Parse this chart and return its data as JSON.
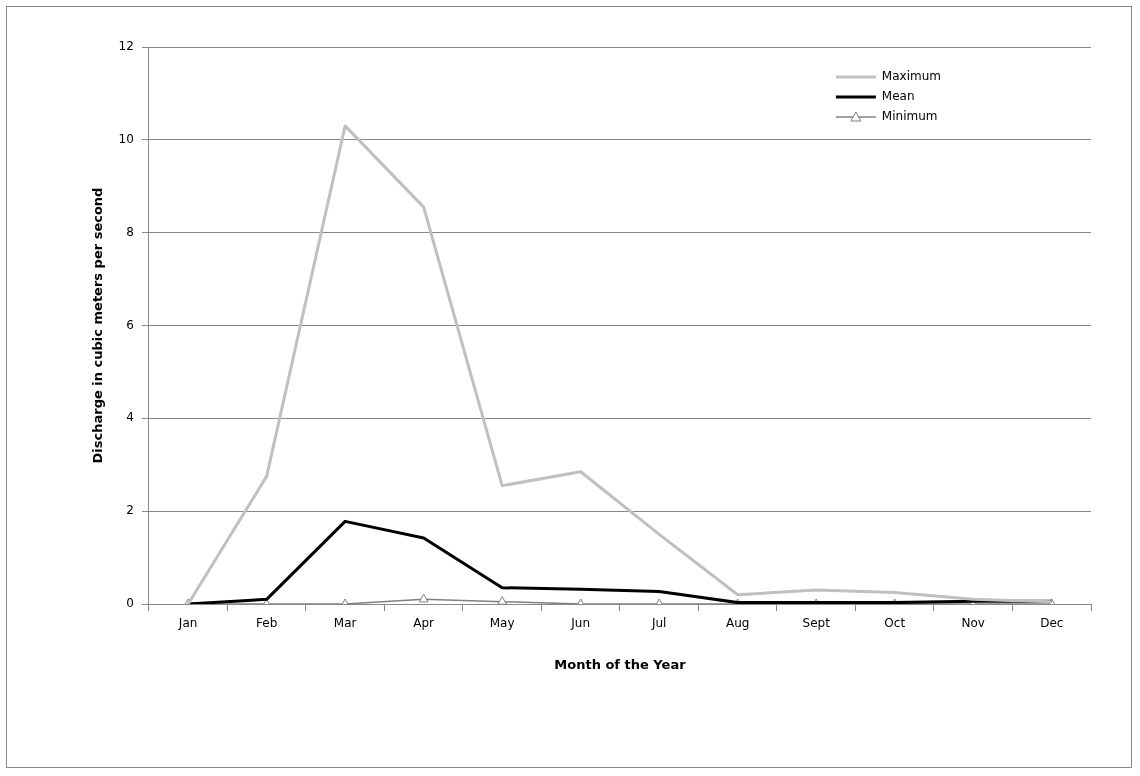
{
  "chart_data": {
    "type": "line",
    "xlabel": "Month of the Year",
    "ylabel": "Discharge in cubic meters per second",
    "categories": [
      "Jan",
      "Feb",
      "Mar",
      "Apr",
      "May",
      "Jun",
      "Jul",
      "Aug",
      "Sept",
      "Oct",
      "Nov",
      "Dec"
    ],
    "series": [
      {
        "name": "Maximum",
        "color": "#c0c0c0",
        "marker": "none",
        "values": [
          0,
          2.75,
          10.3,
          8.55,
          2.55,
          2.85,
          1.5,
          0.2,
          0.3,
          0.25,
          0.1,
          0.05
        ]
      },
      {
        "name": "Mean",
        "color": "#000000",
        "marker": "none",
        "values": [
          0,
          0.1,
          1.78,
          1.42,
          0.35,
          0.32,
          0.27,
          0.03,
          0.03,
          0.03,
          0.06,
          0.06
        ]
      },
      {
        "name": "Minimum",
        "color": "#808080",
        "marker": "triangle",
        "values": [
          0,
          0,
          0,
          0.1,
          0.05,
          0,
          0,
          0,
          0,
          0,
          0,
          0
        ]
      }
    ],
    "ylim": [
      0,
      12
    ],
    "yticks": [
      0,
      2,
      4,
      6,
      8,
      10,
      12
    ],
    "grid": "y",
    "legend": "top right"
  }
}
